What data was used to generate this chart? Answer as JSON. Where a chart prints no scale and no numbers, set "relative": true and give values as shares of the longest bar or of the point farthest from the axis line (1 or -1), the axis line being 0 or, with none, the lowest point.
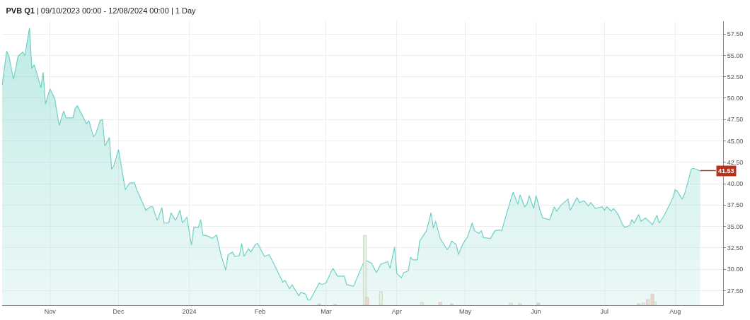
{
  "chart_data": [
    {
      "type": "area",
      "title": "PVB Q1 | 09/10/2023 00:00 - 12/08/2024 00:00 | 1 Day",
      "series": [
        {
          "color": "#6fd0c6",
          "x": [
            "2023-10-11",
            "2023-10-13",
            "2023-10-14",
            "2023-10-16",
            "2023-10-18",
            "2023-10-20",
            "2023-10-21",
            "2023-10-23",
            "2023-10-24",
            "2023-10-25",
            "2023-10-26",
            "2023-10-28",
            "2023-10-29",
            "2023-10-30",
            "2023-11-01",
            "2023-11-03",
            "2023-11-05",
            "2023-11-07",
            "2023-11-08",
            "2023-11-11",
            "2023-11-12",
            "2023-11-13",
            "2023-11-17",
            "2023-11-18",
            "2023-11-20",
            "2023-11-21",
            "2023-11-23",
            "2023-11-24",
            "2023-11-25",
            "2023-11-27",
            "2023-11-28",
            "2023-11-29",
            "2023-12-01",
            "2023-12-04",
            "2023-12-06",
            "2023-12-08",
            "2023-12-09",
            "2023-12-13",
            "2023-12-15",
            "2023-12-16",
            "2023-12-18",
            "2023-12-20",
            "2023-12-21",
            "2023-12-23",
            "2023-12-24",
            "2023-12-26",
            "2023-12-28",
            "2023-12-29",
            "2023-12-31",
            "2024-01-02",
            "2024-01-03",
            "2024-01-05",
            "2024-01-06",
            "2024-01-07",
            "2024-01-09",
            "2024-01-11",
            "2024-01-13",
            "2024-01-15",
            "2024-01-17",
            "2024-01-18",
            "2024-01-20",
            "2024-01-21",
            "2024-01-23",
            "2024-01-24",
            "2024-01-25",
            "2024-01-27",
            "2024-01-28",
            "2024-01-30",
            "2024-01-31",
            "2024-02-03",
            "2024-02-05",
            "2024-02-07",
            "2024-02-11",
            "2024-02-12",
            "2024-02-14",
            "2024-02-15",
            "2024-02-18",
            "2024-02-19",
            "2024-02-21",
            "2024-02-22",
            "2024-02-23",
            "2024-02-24",
            "2024-02-27",
            "2024-02-28",
            "2024-03-01",
            "2024-03-03",
            "2024-03-04",
            "2024-03-06",
            "2024-03-09",
            "2024-03-10",
            "2024-03-13",
            "2024-03-16",
            "2024-03-18",
            "2024-03-21",
            "2024-03-23",
            "2024-03-25",
            "2024-03-28",
            "2024-03-29",
            "2024-03-31",
            "2024-04-01",
            "2024-04-03",
            "2024-04-04",
            "2024-04-06",
            "2024-04-07",
            "2024-04-08",
            "2024-04-10",
            "2024-04-11",
            "2024-04-14",
            "2024-04-16",
            "2024-04-17",
            "2024-04-18",
            "2024-04-20",
            "2024-04-23",
            "2024-04-24",
            "2024-04-25",
            "2024-04-27",
            "2024-04-28",
            "2024-04-30",
            "2024-05-02",
            "2024-05-04",
            "2024-05-05",
            "2024-05-07",
            "2024-05-08",
            "2024-05-09",
            "2024-05-12",
            "2024-05-14",
            "2024-05-16",
            "2024-05-17",
            "2024-05-18",
            "2024-05-21",
            "2024-05-22",
            "2024-05-24",
            "2024-05-25",
            "2024-05-27",
            "2024-05-28",
            "2024-05-29",
            "2024-05-31",
            "2024-06-01",
            "2024-06-03",
            "2024-06-04",
            "2024-06-07",
            "2024-06-09",
            "2024-06-10",
            "2024-06-12",
            "2024-06-15",
            "2024-06-16",
            "2024-06-19",
            "2024-06-20",
            "2024-06-22",
            "2024-06-24",
            "2024-06-25",
            "2024-06-27",
            "2024-06-30",
            "2024-07-01",
            "2024-07-02",
            "2024-07-04",
            "2024-07-05",
            "2024-07-07",
            "2024-07-09",
            "2024-07-10",
            "2024-07-12",
            "2024-07-13",
            "2024-07-14",
            "2024-07-16",
            "2024-07-17",
            "2024-07-19",
            "2024-07-21",
            "2024-07-22",
            "2024-07-24",
            "2024-07-25",
            "2024-07-27",
            "2024-07-30",
            "2024-07-31",
            "2024-08-01",
            "2024-08-02",
            "2024-08-04",
            "2024-08-05",
            "2024-08-07",
            "2024-08-08",
            "2024-08-09",
            "2024-08-12"
          ],
          "values": [
            51.5,
            55.5,
            54.9,
            52.2,
            54.9,
            55.4,
            55.0,
            58.2,
            53.5,
            53.9,
            53.1,
            51.2,
            53.0,
            49.3,
            51.1,
            50.0,
            46.8,
            48.5,
            47.7,
            47.7,
            48.8,
            49.1,
            47.0,
            47.4,
            45.5,
            45.8,
            47.4,
            47.5,
            44.4,
            45.4,
            41.7,
            42.1,
            44.0,
            39.3,
            40.1,
            40.1,
            39.3,
            36.9,
            37.3,
            37.3,
            35.7,
            37.2,
            35.4,
            35.4,
            36.6,
            35.7,
            36.9,
            35.4,
            36.1,
            32.8,
            34.9,
            34.9,
            35.8,
            34.0,
            33.9,
            33.6,
            34.0,
            31.6,
            29.9,
            31.7,
            32.0,
            31.5,
            31.6,
            33.0,
            31.5,
            32.4,
            32.0,
            32.9,
            33.0,
            31.5,
            31.7,
            30.7,
            28.5,
            28.7,
            27.7,
            28.2,
            26.9,
            27.3,
            27.1,
            26.4,
            26.4,
            26.9,
            28.4,
            28.2,
            28.4,
            29.6,
            30.1,
            29.2,
            29.2,
            28.2,
            28.0,
            29.9,
            31.1,
            30.7,
            29.6,
            30.6,
            30.9,
            30.1,
            32.6,
            29.5,
            29.0,
            29.6,
            29.8,
            31.4,
            31.1,
            31.1,
            33.3,
            34.5,
            36.6,
            34.8,
            35.6,
            33.6,
            32.3,
            32.6,
            33.3,
            32.9,
            31.7,
            33.0,
            33.8,
            35.4,
            34.5,
            34.2,
            34.5,
            33.7,
            33.6,
            34.5,
            34.6,
            34.5,
            35.5,
            38.2,
            39.0,
            37.6,
            38.7,
            37.3,
            37.6,
            38.6,
            37.1,
            38.6,
            36.7,
            36.0,
            35.8,
            37.3,
            36.8,
            37.5,
            38.2,
            36.9,
            38.4,
            37.8,
            38.0,
            37.4,
            37.8,
            37.1,
            37.3,
            36.9,
            37.3,
            36.8,
            37.1,
            36.4,
            35.2,
            34.9,
            35.1,
            35.8,
            35.4,
            36.4,
            35.6,
            36.0,
            35.5,
            35.2,
            36.3,
            35.4,
            36.2,
            37.8,
            38.4,
            39.3,
            39.1,
            38.2,
            38.7,
            40.6,
            41.7,
            41.8,
            41.5
          ]
        }
      ],
      "xlim": [
        "2023-10-11",
        "2024-08-22"
      ],
      "xticks": [
        {
          "value": "2023-11-01",
          "label": "Nov"
        },
        {
          "value": "2023-12-01",
          "label": "Dec"
        },
        {
          "value": "2024-01-01",
          "label": "2024"
        },
        {
          "value": "2024-02-01",
          "label": "Feb"
        },
        {
          "value": "2024-03-01",
          "label": "Mar"
        },
        {
          "value": "2024-04-01",
          "label": "Apr"
        },
        {
          "value": "2024-05-01",
          "label": "May"
        },
        {
          "value": "2024-06-01",
          "label": "Jun"
        },
        {
          "value": "2024-07-01",
          "label": "Jul"
        },
        {
          "value": "2024-08-01",
          "label": "Aug"
        }
      ],
      "ylim": [
        25.8,
        59.0
      ],
      "yticks": [
        {
          "value": 27.5,
          "label": "27.50"
        },
        {
          "value": 30,
          "label": "30.00"
        },
        {
          "value": 32.5,
          "label": "32.50"
        },
        {
          "value": 35,
          "label": "35.00"
        },
        {
          "value": 37.5,
          "label": "37.50"
        },
        {
          "value": 40,
          "label": "40.00"
        },
        {
          "value": 42.5,
          "label": "42.50"
        },
        {
          "value": 45,
          "label": "45.00"
        },
        {
          "value": 47.5,
          "label": "47.50"
        },
        {
          "value": 50,
          "label": "50.00"
        },
        {
          "value": 52.5,
          "label": "52.50"
        },
        {
          "value": 55,
          "label": "55.00"
        },
        {
          "value": 57.5,
          "label": "57.50"
        }
      ],
      "grid": true,
      "annotations": [
        {
          "text": "41.53",
          "x": "2024-08-12",
          "y": 41.53
        }
      ]
    },
    {
      "type": "bar",
      "relative": true,
      "xlim": [
        "2023-10-11",
        "2024-08-22"
      ],
      "series": [
        {
          "color": "#e3efdf",
          "x": [
            "2024-03-18",
            "2024-03-25",
            "2024-04-12",
            "2024-05-21",
            "2024-05-25",
            "2024-07-18",
            "2024-07-23"
          ],
          "values": [
            1.0,
            0.19,
            0.04,
            0.03,
            0.02,
            0.03,
            0.05
          ]
        },
        {
          "color": "#f3d4cf",
          "x": [
            "2024-02-27",
            "2024-03-05",
            "2024-03-19",
            "2024-04-20",
            "2024-04-25",
            "2024-06-02",
            "2024-07-16",
            "2024-07-20",
            "2024-07-22"
          ],
          "values": [
            0.02,
            0.01,
            0.11,
            0.04,
            0.02,
            0.03,
            0.02,
            0.08,
            0.16
          ]
        }
      ]
    }
  ]
}
